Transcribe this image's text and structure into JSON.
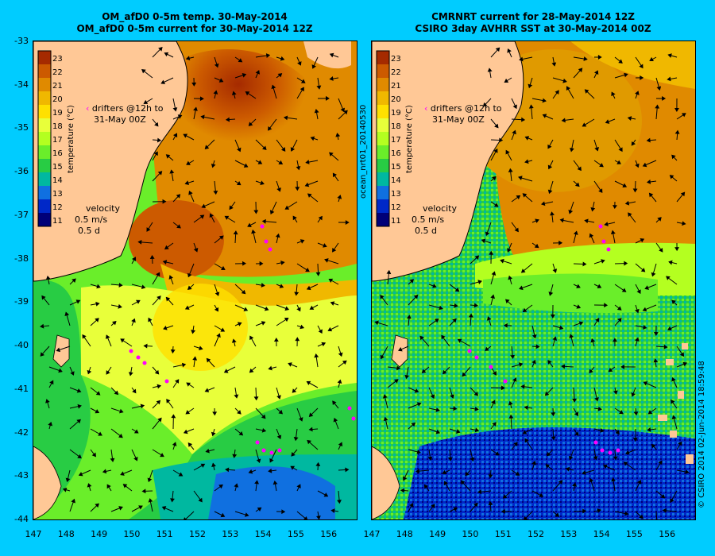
{
  "titles": {
    "left_line1": "OM_afD0 0-5m temp. 30-May-2014",
    "left_line2": "OM_afD0 0-5m current for 30-May-2014 12Z",
    "right_line1": "CMRNRT current for 28-May-2014 12Z",
    "right_line2": "CSIRO 3day AVHRR SST at 30-May-2014 00Z"
  },
  "y_axis_ticks": [
    "-33",
    "-34",
    "-35",
    "-36",
    "-37",
    "-38",
    "-39",
    "-40",
    "-41",
    "-42",
    "-43",
    "-44"
  ],
  "x_axis_ticks": [
    "147",
    "148",
    "149",
    "150",
    "151",
    "152",
    "153",
    "154",
    "155",
    "156"
  ],
  "colorbar": {
    "title": "temperature (°C)",
    "levels": [
      "23",
      "22",
      "21",
      "20",
      "19",
      "18",
      "17",
      "16",
      "15",
      "14",
      "13",
      "12",
      "11"
    ],
    "colors": [
      "#a52a00",
      "#cc5a00",
      "#e08a00",
      "#f0b800",
      "#ffe000",
      "#e8ff3a",
      "#b4ff20",
      "#6aee2a",
      "#28cc44",
      "#00b8a0",
      "#1070e0",
      "#0028c8",
      "#000078"
    ]
  },
  "legend": {
    "drifters_line1": "drifters @12h to",
    "drifters_line2": "31-May 00Z",
    "velocity_label": "velocity",
    "velocity_value1": "0.5 m/s",
    "velocity_value2": "0.5 d"
  },
  "side_texts": {
    "ocean_id": "ocean_nrt01_20140530",
    "credit": "© CSIRO 2014   02-Jun-2014 18:59:48"
  },
  "colors": {
    "background": "#00ccff",
    "land": "#ffc896",
    "drifter": "#ff00ff",
    "arrow": "#000000"
  }
}
